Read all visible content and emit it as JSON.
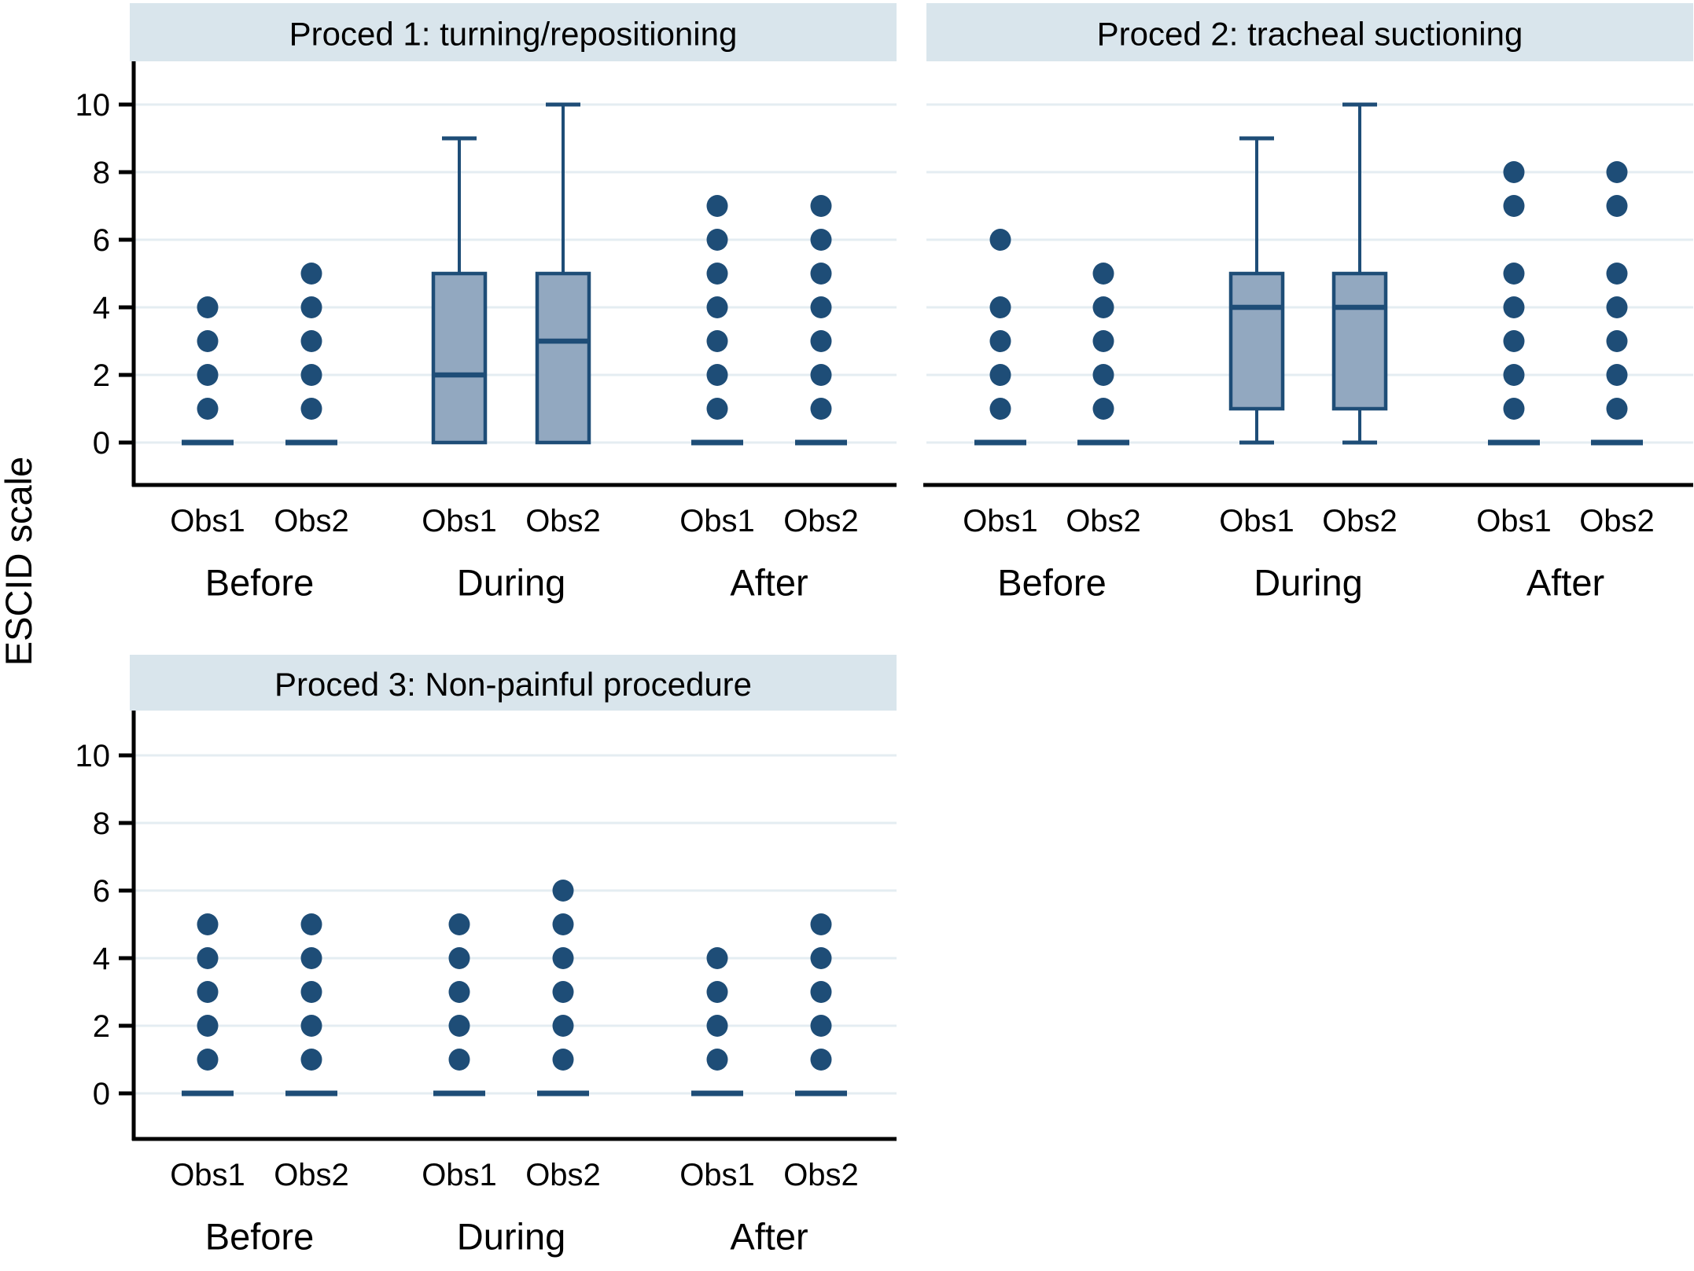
{
  "figure": {
    "ylabel": "ESCID scale",
    "colors": {
      "navy": "#1e4d77",
      "box_fill": "#92a8c0",
      "band_fill": "#d9e5ec",
      "grid": "#e4edf2",
      "axis": "#000000",
      "background": "#ffffff"
    }
  },
  "chart_data": {
    "type": "box",
    "ylabel": "ESCID scale",
    "ylim": [
      0,
      10
    ],
    "yticks": [
      0,
      2,
      4,
      6,
      8,
      10
    ],
    "ytick_labels": [
      "0",
      "2",
      "4",
      "6",
      "8",
      "10"
    ],
    "groups": [
      "Before",
      "During",
      "After"
    ],
    "observers": [
      "Obs1",
      "Obs2"
    ],
    "grid": true,
    "legend_position": "none",
    "panels": [
      {
        "title": "Proced 1: turning/repositioning",
        "series": [
          {
            "group": "Before",
            "observer": "Obs1",
            "median": 0,
            "points": [
              1,
              2,
              3,
              4
            ]
          },
          {
            "group": "Before",
            "observer": "Obs2",
            "median": 0,
            "points": [
              1,
              2,
              3,
              4,
              5
            ]
          },
          {
            "group": "During",
            "observer": "Obs1",
            "box": {
              "q1": 0,
              "median": 2,
              "q3": 5,
              "whisker_low": 0,
              "whisker_high": 9
            }
          },
          {
            "group": "During",
            "observer": "Obs2",
            "box": {
              "q1": 0,
              "median": 3,
              "q3": 5,
              "whisker_low": 0,
              "whisker_high": 10
            }
          },
          {
            "group": "After",
            "observer": "Obs1",
            "median": 0,
            "points": [
              1,
              2,
              3,
              4,
              5,
              6,
              7
            ]
          },
          {
            "group": "After",
            "observer": "Obs2",
            "median": 0,
            "points": [
              1,
              2,
              3,
              4,
              5,
              6,
              7
            ]
          }
        ]
      },
      {
        "title": "Proced 2: tracheal suctioning",
        "series": [
          {
            "group": "Before",
            "observer": "Obs1",
            "median": 0,
            "points": [
              1,
              2,
              3,
              4,
              6
            ]
          },
          {
            "group": "Before",
            "observer": "Obs2",
            "median": 0,
            "points": [
              1,
              2,
              3,
              4,
              5
            ]
          },
          {
            "group": "During",
            "observer": "Obs1",
            "box": {
              "q1": 1,
              "median": 4,
              "q3": 5,
              "whisker_low": 0,
              "whisker_high": 9
            }
          },
          {
            "group": "During",
            "observer": "Obs2",
            "box": {
              "q1": 1,
              "median": 4,
              "q3": 5,
              "whisker_low": 0,
              "whisker_high": 10
            }
          },
          {
            "group": "After",
            "observer": "Obs1",
            "median": 0,
            "points": [
              1,
              2,
              3,
              4,
              5,
              7,
              8
            ]
          },
          {
            "group": "After",
            "observer": "Obs2",
            "median": 0,
            "points": [
              1,
              2,
              3,
              4,
              5,
              7,
              8
            ]
          }
        ]
      },
      {
        "title": "Proced 3: Non-painful procedure",
        "series": [
          {
            "group": "Before",
            "observer": "Obs1",
            "median": 0,
            "points": [
              1,
              2,
              3,
              4,
              5
            ]
          },
          {
            "group": "Before",
            "observer": "Obs2",
            "median": 0,
            "points": [
              1,
              2,
              3,
              4,
              5
            ]
          },
          {
            "group": "During",
            "observer": "Obs1",
            "median": 0,
            "points": [
              1,
              2,
              3,
              4,
              5
            ]
          },
          {
            "group": "During",
            "observer": "Obs2",
            "median": 0,
            "points": [
              1,
              2,
              3,
              4,
              5,
              6
            ]
          },
          {
            "group": "After",
            "observer": "Obs1",
            "median": 0,
            "points": [
              1,
              2,
              3,
              4
            ]
          },
          {
            "group": "After",
            "observer": "Obs2",
            "median": 0,
            "points": [
              1,
              2,
              3,
              4,
              5
            ]
          }
        ]
      }
    ]
  }
}
